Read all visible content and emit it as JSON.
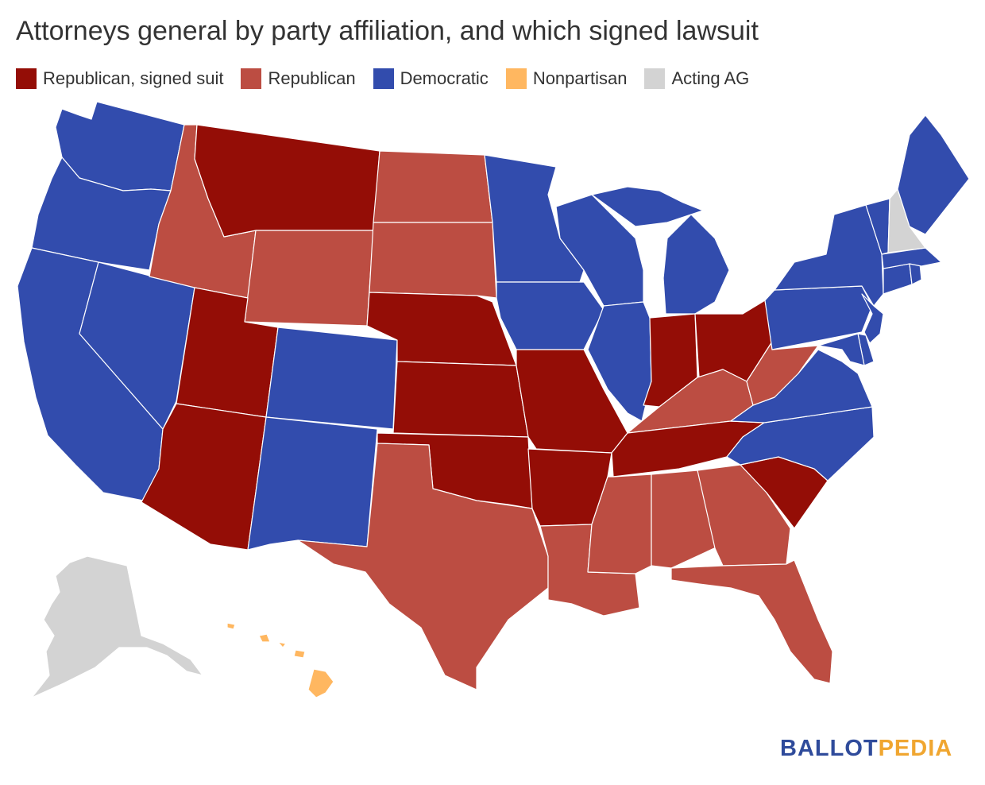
{
  "title": "Attorneys general by party affiliation, and which signed lawsuit",
  "legend": [
    {
      "label": "Republican, signed suit",
      "color": "#940d06"
    },
    {
      "label": "Republican",
      "color": "#bc4d42"
    },
    {
      "label": "Democratic",
      "color": "#324cad"
    },
    {
      "label": "Nonpartisan",
      "color": "#ffb760"
    },
    {
      "label": "Acting AG",
      "color": "#d3d3d3"
    }
  ],
  "colors": {
    "rs": "#940d06",
    "r": "#bc4d42",
    "d": "#324cad",
    "np": "#ffb760",
    "acting": "#d3d3d3"
  },
  "states": {
    "WA": "d",
    "OR": "d",
    "CA": "d",
    "NV": "d",
    "ID": "r",
    "MT": "rs",
    "WY": "r",
    "UT": "rs",
    "AZ": "rs",
    "CO": "d",
    "NM": "d",
    "ND": "r",
    "SD": "r",
    "NE": "rs",
    "KS": "rs",
    "OK": "rs",
    "TX": "r",
    "MN": "d",
    "IA": "d",
    "MO": "rs",
    "AR": "rs",
    "LA": "r",
    "WI": "d",
    "IL": "d",
    "MI": "d",
    "IN": "rs",
    "OH": "rs",
    "KY": "r",
    "TN": "rs",
    "MS": "r",
    "AL": "r",
    "GA": "r",
    "FL": "r",
    "SC": "rs",
    "NC": "d",
    "VA": "d",
    "WV": "r",
    "PA": "d",
    "NY": "d",
    "NJ": "d",
    "DE": "d",
    "MD": "d",
    "CT": "d",
    "RI": "d",
    "MA": "d",
    "VT": "d",
    "NH": "acting",
    "ME": "d",
    "AK": "acting",
    "HI": "np"
  },
  "logo": {
    "part1": "BALLOT",
    "part2": "PEDIA"
  }
}
